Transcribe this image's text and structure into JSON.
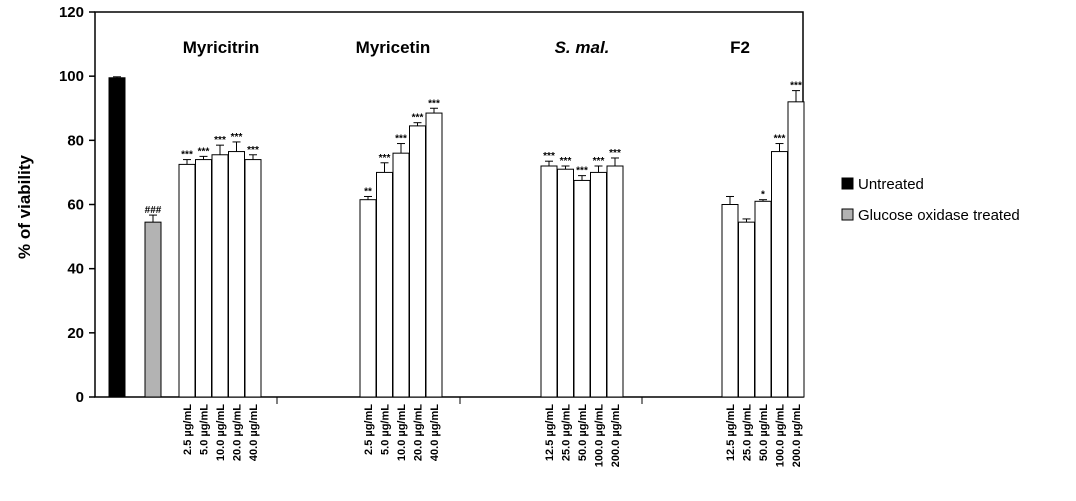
{
  "chart_data": {
    "type": "bar",
    "ylabel": "% of viability",
    "ylim": [
      0,
      120
    ],
    "yticks": [
      0,
      20,
      40,
      60,
      80,
      100,
      120
    ],
    "grid": false,
    "legend_position": "right",
    "legend": [
      {
        "label": "Untreated",
        "color": "#000000"
      },
      {
        "label": "Glucose oxidase treated",
        "color": "#b3b3b3"
      }
    ],
    "controls": [
      {
        "name": "Untreated",
        "value": 99.5,
        "error": 0.3,
        "color": "#000000",
        "sig": ""
      },
      {
        "name": "Glucose oxidase treated",
        "value": 54.5,
        "error": 2.2,
        "color": "#b3b3b3",
        "sig": "###"
      }
    ],
    "groups": [
      {
        "title": "Myricitrin",
        "italic": false,
        "categories": [
          "2.5 µg/mL",
          "5.0 µg/mL",
          "10.0 µg/mL",
          "20.0 µg/mL",
          "40.0 µg/mL"
        ],
        "values": [
          72.5,
          74,
          75.5,
          76.5,
          74
        ],
        "errors": [
          1.5,
          1,
          3,
          3,
          1.5
        ],
        "sig": [
          "***",
          "***",
          "***",
          "***",
          "***"
        ]
      },
      {
        "title": "Myricetin",
        "italic": false,
        "categories": [
          "2.5 µg/mL",
          "5.0 µg/mL",
          "10.0 µg/mL",
          "20.0 µg/mL",
          "40.0 µg/mL"
        ],
        "values": [
          61.5,
          70,
          76,
          84.5,
          88.5
        ],
        "errors": [
          1,
          3,
          3,
          1,
          1.5
        ],
        "sig": [
          "**",
          "***",
          "***",
          "***",
          "***"
        ]
      },
      {
        "title": "S. mal.",
        "italic": true,
        "categories": [
          "12.5 µg/mL",
          "25.0 µg/mL",
          "50.0 µg/mL",
          "100.0 µg/mL",
          "200.0 µg/mL"
        ],
        "values": [
          72,
          71,
          67.5,
          70,
          72
        ],
        "errors": [
          1.5,
          1,
          1.5,
          2,
          2.5
        ],
        "sig": [
          "***",
          "***",
          "***",
          "***",
          "***"
        ]
      },
      {
        "title": "F2",
        "italic": false,
        "categories": [
          "12.5 µg/mL",
          "25.0 µg/mL",
          "50.0 µg/mL",
          "100.0 µg/mL",
          "200.0 µg/mL"
        ],
        "values": [
          60,
          54.5,
          61,
          76.5,
          92
        ],
        "errors": [
          2.5,
          1,
          0.5,
          2.5,
          3.5
        ],
        "sig": [
          "",
          "",
          "*",
          "***",
          "***"
        ]
      }
    ]
  }
}
